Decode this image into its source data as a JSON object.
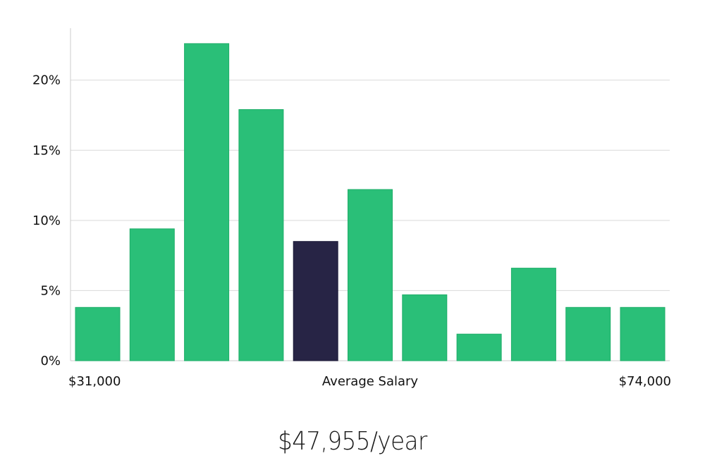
{
  "chart_data": {
    "type": "bar",
    "title": "",
    "xlabel": "Average Salary",
    "ylabel": "",
    "x_range_labels": {
      "min": "$31,000",
      "max": "$74,000"
    },
    "values": [
      3.8,
      9.4,
      22.6,
      17.9,
      8.5,
      12.2,
      4.7,
      1.9,
      6.6,
      3.8,
      3.8
    ],
    "highlight_index": 4,
    "ylim": [
      0,
      23.7
    ],
    "yticks": [
      0,
      5,
      10,
      15,
      20
    ],
    "ytick_labels": [
      "0%",
      "5%",
      "10%",
      "15%",
      "20%"
    ],
    "grid": true,
    "colors": {
      "bar": "#2abf78",
      "bar_edge": "#1fae69",
      "highlight": "#272445",
      "grid": "#d9d9d9",
      "axis": "#cccccc"
    }
  },
  "salary_caption": "$47,955/year"
}
